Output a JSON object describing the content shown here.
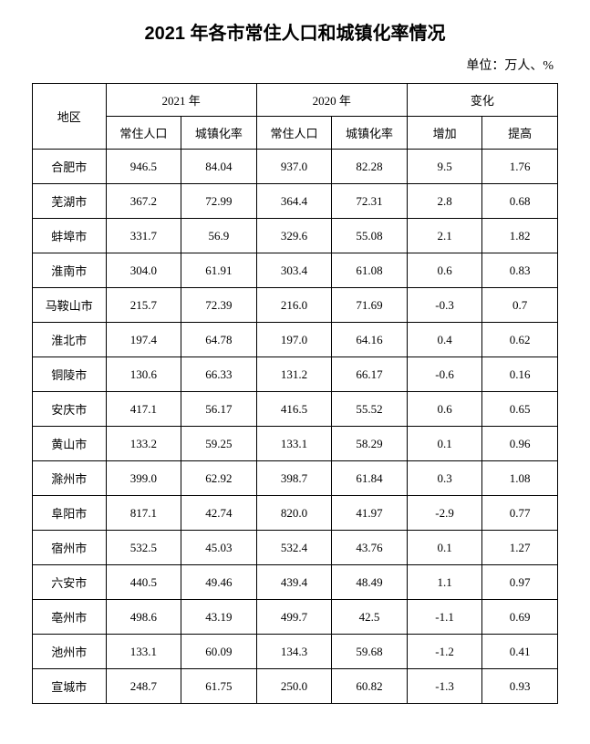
{
  "title": "2021 年各市常住人口和城镇化率情况",
  "unit": "单位：万人、%",
  "table": {
    "type": "table",
    "header": {
      "region": "地区",
      "group1": "2021 年",
      "group2": "2020 年",
      "group3": "变化",
      "sub1": "常住人口",
      "sub2": "城镇化率",
      "sub3": "常住人口",
      "sub4": "城镇化率",
      "sub5": "增加",
      "sub6": "提高"
    },
    "rows": [
      {
        "region": "合肥市",
        "pop2021": "946.5",
        "urb2021": "84.04",
        "pop2020": "937.0",
        "urb2020": "82.28",
        "inc": "9.5",
        "imp": "1.76"
      },
      {
        "region": "芜湖市",
        "pop2021": "367.2",
        "urb2021": "72.99",
        "pop2020": "364.4",
        "urb2020": "72.31",
        "inc": "2.8",
        "imp": "0.68"
      },
      {
        "region": "蚌埠市",
        "pop2021": "331.7",
        "urb2021": "56.9",
        "pop2020": "329.6",
        "urb2020": "55.08",
        "inc": "2.1",
        "imp": "1.82"
      },
      {
        "region": "淮南市",
        "pop2021": "304.0",
        "urb2021": "61.91",
        "pop2020": "303.4",
        "urb2020": "61.08",
        "inc": "0.6",
        "imp": "0.83"
      },
      {
        "region": "马鞍山市",
        "pop2021": "215.7",
        "urb2021": "72.39",
        "pop2020": "216.0",
        "urb2020": "71.69",
        "inc": "-0.3",
        "imp": "0.7"
      },
      {
        "region": "淮北市",
        "pop2021": "197.4",
        "urb2021": "64.78",
        "pop2020": "197.0",
        "urb2020": "64.16",
        "inc": "0.4",
        "imp": "0.62"
      },
      {
        "region": "铜陵市",
        "pop2021": "130.6",
        "urb2021": "66.33",
        "pop2020": "131.2",
        "urb2020": "66.17",
        "inc": "-0.6",
        "imp": "0.16"
      },
      {
        "region": "安庆市",
        "pop2021": "417.1",
        "urb2021": "56.17",
        "pop2020": "416.5",
        "urb2020": "55.52",
        "inc": "0.6",
        "imp": "0.65"
      },
      {
        "region": "黄山市",
        "pop2021": "133.2",
        "urb2021": "59.25",
        "pop2020": "133.1",
        "urb2020": "58.29",
        "inc": "0.1",
        "imp": "0.96"
      },
      {
        "region": "滁州市",
        "pop2021": "399.0",
        "urb2021": "62.92",
        "pop2020": "398.7",
        "urb2020": "61.84",
        "inc": "0.3",
        "imp": "1.08"
      },
      {
        "region": "阜阳市",
        "pop2021": "817.1",
        "urb2021": "42.74",
        "pop2020": "820.0",
        "urb2020": "41.97",
        "inc": "-2.9",
        "imp": "0.77"
      },
      {
        "region": "宿州市",
        "pop2021": "532.5",
        "urb2021": "45.03",
        "pop2020": "532.4",
        "urb2020": "43.76",
        "inc": "0.1",
        "imp": "1.27"
      },
      {
        "region": "六安市",
        "pop2021": "440.5",
        "urb2021": "49.46",
        "pop2020": "439.4",
        "urb2020": "48.49",
        "inc": "1.1",
        "imp": "0.97"
      },
      {
        "region": "亳州市",
        "pop2021": "498.6",
        "urb2021": "43.19",
        "pop2020": "499.7",
        "urb2020": "42.5",
        "inc": "-1.1",
        "imp": "0.69"
      },
      {
        "region": "池州市",
        "pop2021": "133.1",
        "urb2021": "60.09",
        "pop2020": "134.3",
        "urb2020": "59.68",
        "inc": "-1.2",
        "imp": "0.41"
      },
      {
        "region": "宣城市",
        "pop2021": "248.7",
        "urb2021": "61.75",
        "pop2020": "250.0",
        "urb2020": "60.82",
        "inc": "-1.3",
        "imp": "0.93"
      }
    ],
    "border_color": "#000000",
    "background_color": "#ffffff",
    "font_size": 13,
    "title_fontsize": 20
  }
}
